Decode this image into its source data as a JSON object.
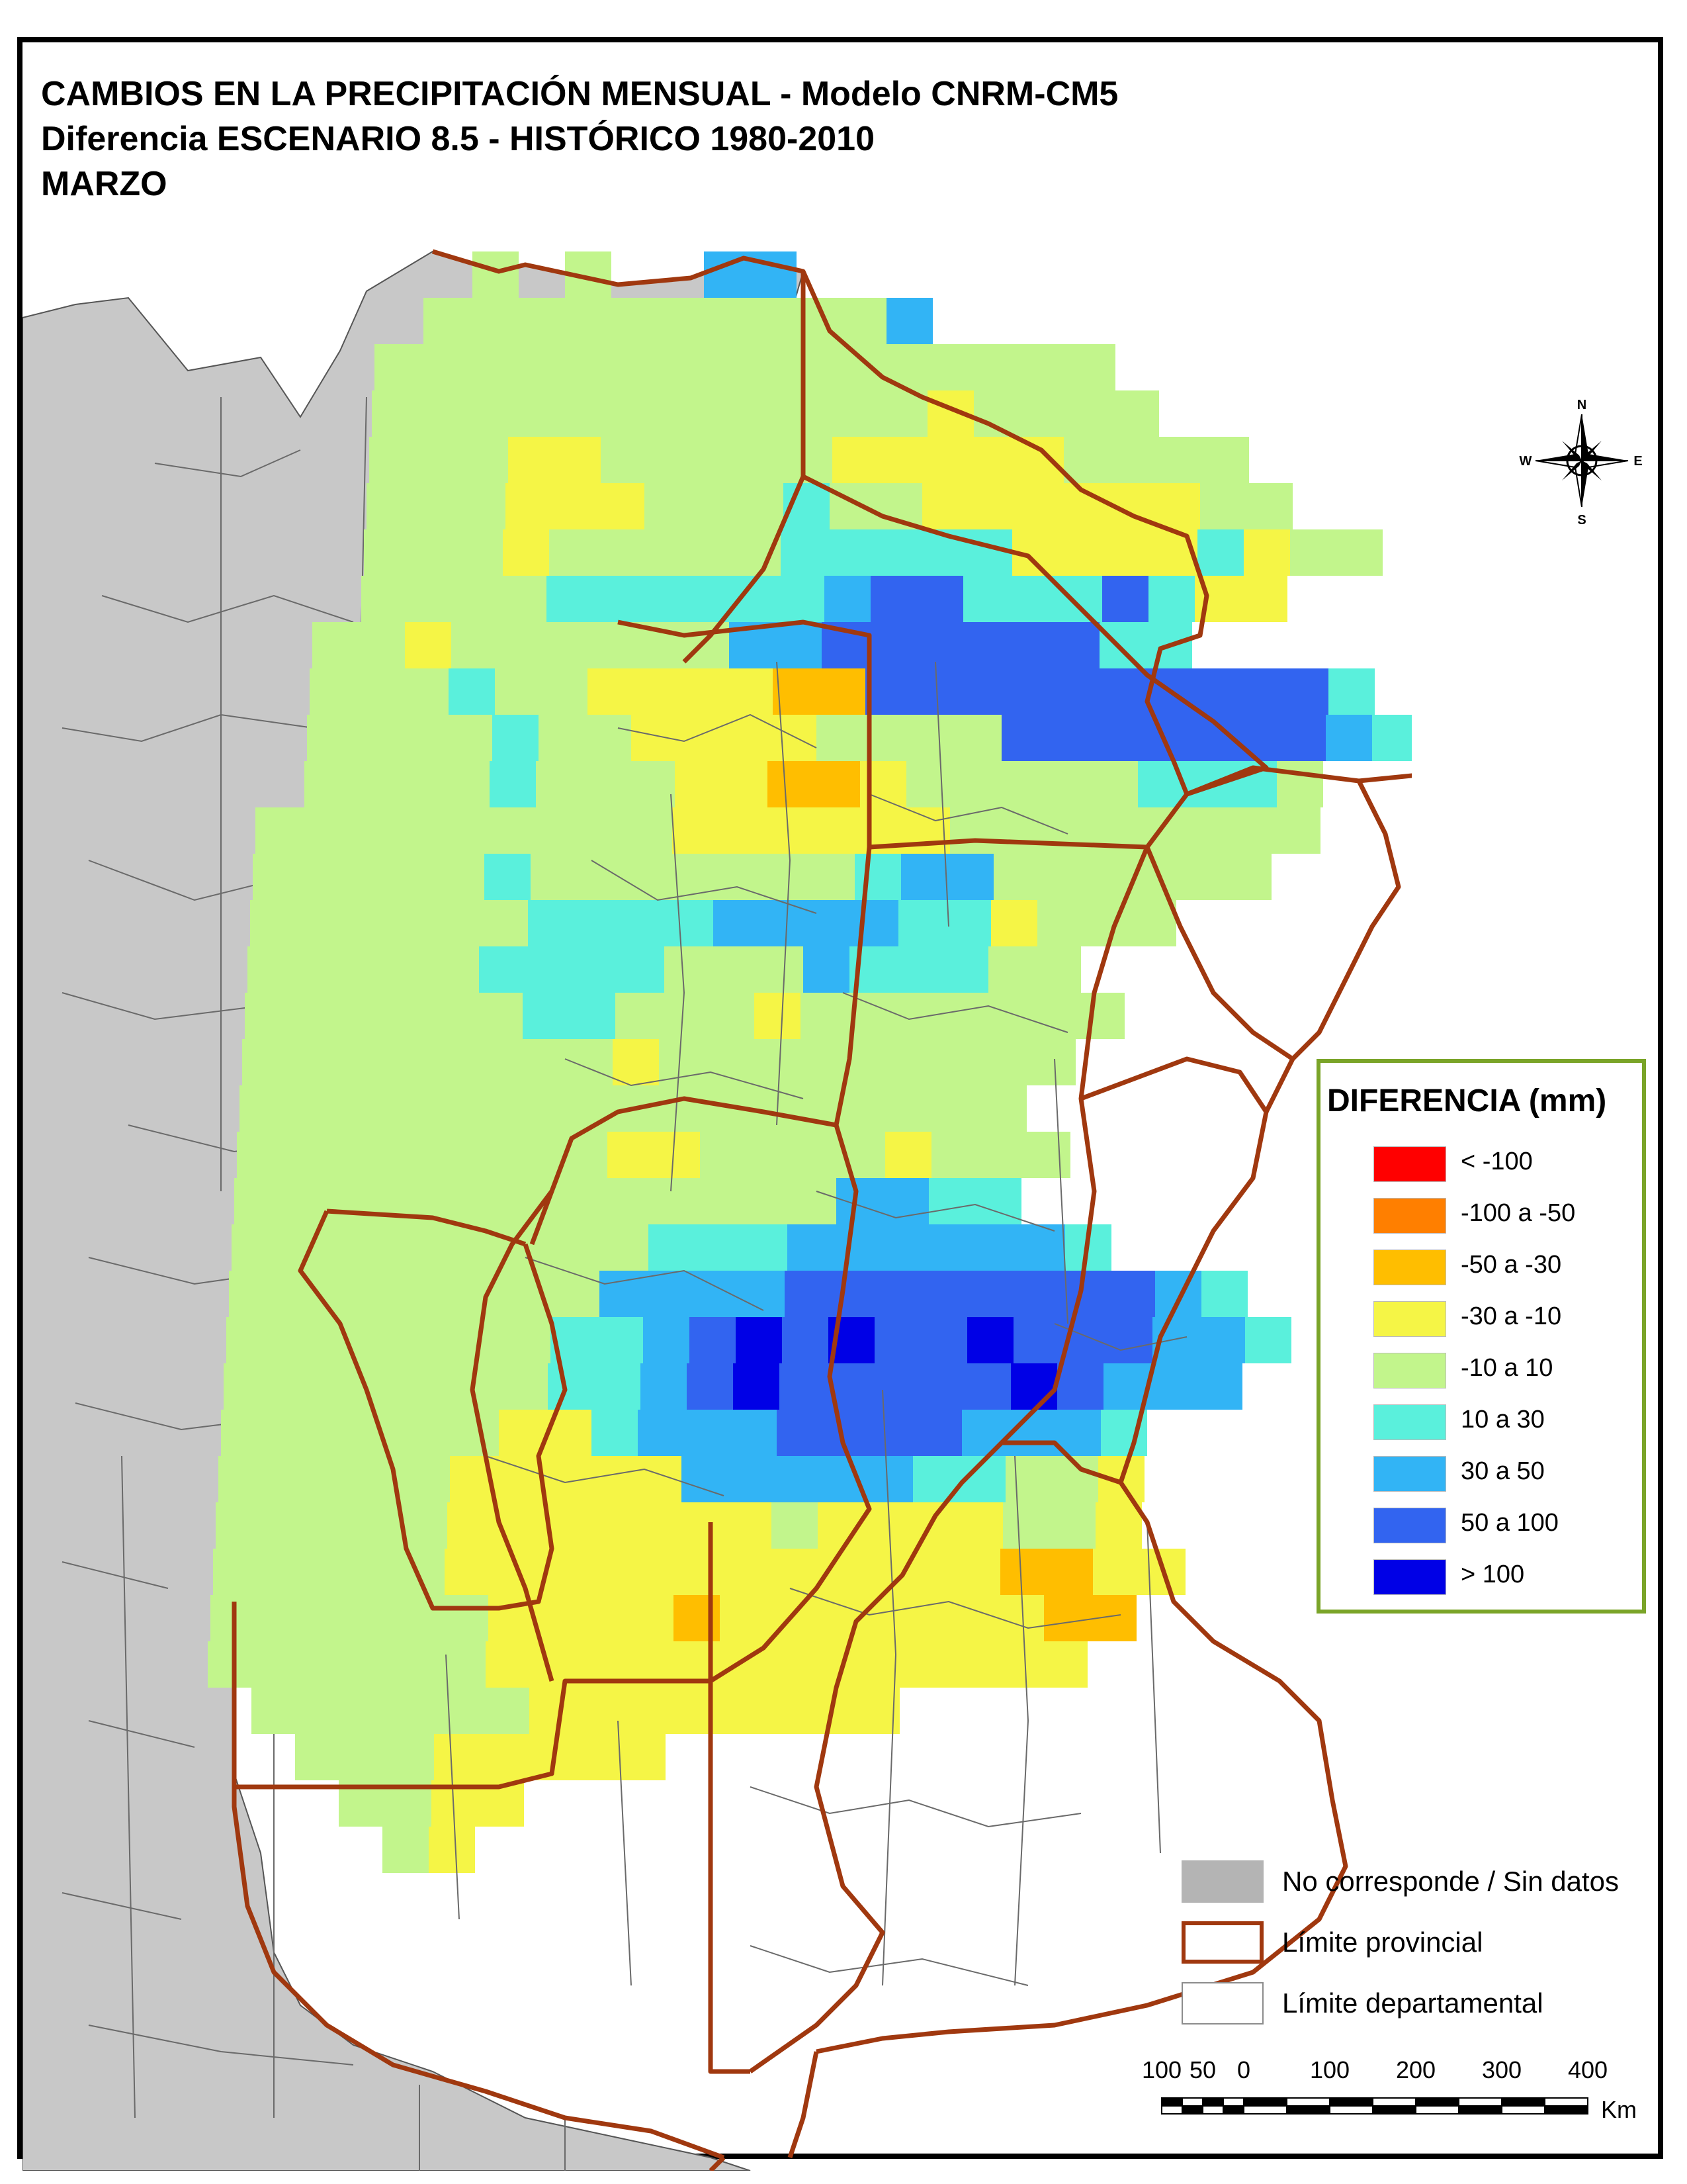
{
  "title": {
    "line1": "CAMBIOS EN LA PRECIPITACIÓN MENSUAL - Modelo CNRM-CM5",
    "line2": "Diferencia ESCENARIO 8.5 - HISTÓRICO 1980-2010",
    "line3": "MARZO"
  },
  "legend": {
    "title": "DIFERENCIA (mm)",
    "classes": [
      {
        "label": "< -100",
        "color": "#ff0000"
      },
      {
        "label": "-100 a -50",
        "color": "#ff7f00"
      },
      {
        "label": "-50 a -30",
        "color": "#ffbe00"
      },
      {
        "label": "-30 a -10",
        "color": "#f5f546"
      },
      {
        "label": "-10 a 10",
        "color": "#c2f58c"
      },
      {
        "label": "10 a 30",
        "color": "#5af0dc"
      },
      {
        "label": "30 a 50",
        "color": "#32b4f5"
      },
      {
        "label": "50 a 100",
        "color": "#3264f0"
      },
      {
        "label": "> 100",
        "color": "#0000e6"
      }
    ]
  },
  "key": {
    "no_data": "No corresponde / Sin datos",
    "provincial": "Límite provincial",
    "departmental": "Límite departamental"
  },
  "colors": {
    "no_data": "#c8c8c8",
    "province_border": "#a0380f",
    "department_border": "#646464"
  },
  "compass": {
    "n": "N",
    "s": "S",
    "e": "E",
    "w": "W"
  },
  "scale": {
    "ticks": [
      "100",
      "50",
      "0",
      "100",
      "200",
      "300",
      "400"
    ],
    "unit": "Km"
  }
}
